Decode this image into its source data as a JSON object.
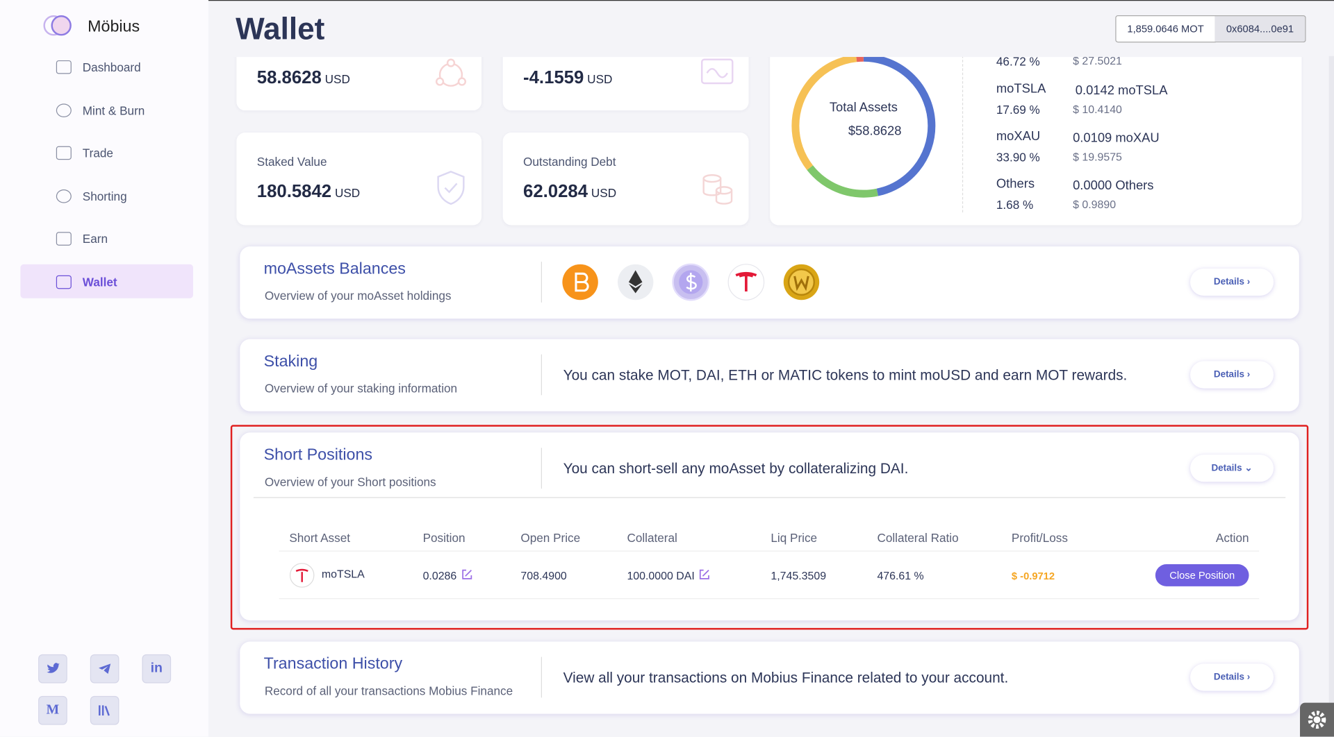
{
  "sidebar": {
    "brand": "Möbius",
    "nav": [
      "Dashboard",
      "Mint & Burn",
      "Trade",
      "Shorting",
      "Earn",
      "Wallet"
    ],
    "socials": [
      "in",
      "M"
    ]
  },
  "header": {
    "title": "Wallet",
    "balance": "1,859.0646 MOT",
    "address": "0x6084....0e91"
  },
  "stats": [
    {
      "value": "58.8628",
      "unit": "USD"
    },
    {
      "value": "-4.1559",
      "unit": "USD"
    },
    {
      "label": "Staked Value",
      "value": "180.5842",
      "unit": "USD"
    },
    {
      "label": "Outstanding Debt",
      "value": "62.0284",
      "unit": "USD"
    }
  ],
  "assets": {
    "center_label": "Total Assets",
    "center_value": "$58.8628",
    "rows": [
      {
        "percent": "46.72 %",
        "usd": "$ 27.5021"
      },
      {
        "name": "moTSLA",
        "amount": "0.0142 moTSLA",
        "percent": "17.69 %",
        "usd": "$ 10.4140"
      },
      {
        "name": "moXAU",
        "amount": "0.0109 moXAU",
        "percent": "33.90 %",
        "usd": "$ 19.9575"
      },
      {
        "name": "Others",
        "amount": "0.0000 Others",
        "percent": "1.68 %",
        "usd": "$ 0.9890"
      }
    ]
  },
  "sections": [
    {
      "title": "moAssets Balances",
      "subtitle": "Overview of your moAsset holdings",
      "button": "Details"
    },
    {
      "title": "Staking",
      "subtitle": "Overview of your staking information",
      "text": "You can stake MOT, DAI, ETH or MATIC tokens to mint moUSD and earn MOT rewards.",
      "button": "Details"
    },
    {
      "title": "Short Positions",
      "subtitle": "Overview of your Short positions",
      "text": "You can short-sell any moAsset by collateralizing DAI.",
      "button": "Details"
    },
    {
      "title": "Transaction History",
      "subtitle": "Record of all your transactions Mobius Finance",
      "text": "View all your transactions on Mobius Finance related to your account.",
      "button": "Details"
    }
  ],
  "table": {
    "columns": [
      "Short Asset",
      "Position",
      "Open Price",
      "Collateral",
      "Liq Price",
      "Collateral Ratio",
      "Profit/Loss",
      "Action"
    ],
    "rows": [
      [
        "moTSLA",
        "0.0286",
        "708.4900",
        "100.0000 DAI",
        "1,745.3509",
        "476.61 %",
        "$ -0.9712",
        "Close Position"
      ]
    ]
  }
}
